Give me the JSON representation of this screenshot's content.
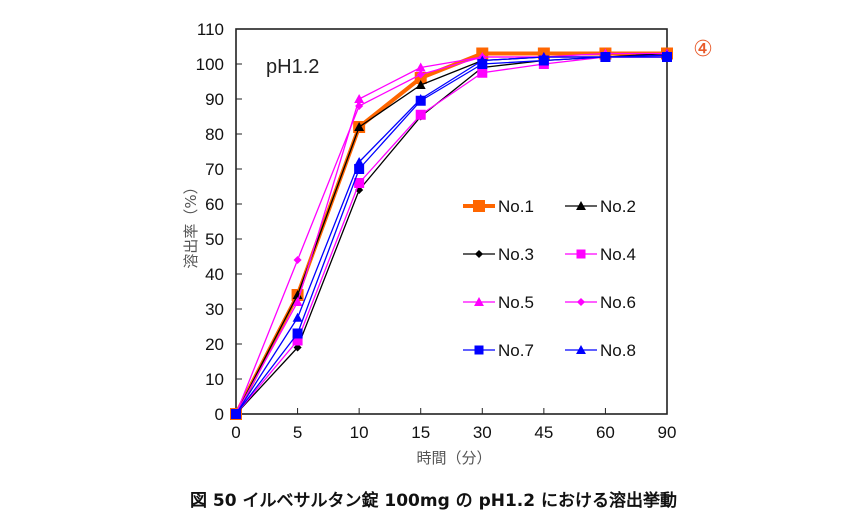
{
  "badge": "④",
  "caption": "図 50  イルベサルタン錠 100mg の pH1.2 における溶出挙動",
  "chart_data": {
    "type": "line",
    "title": "",
    "annotation": "pH1.2",
    "xlabel": "時間（分）",
    "ylabel": "溶出率（%）",
    "categories": [
      "0",
      "5",
      "10",
      "15",
      "30",
      "45",
      "60",
      "90"
    ],
    "ylim": [
      0,
      110
    ],
    "yticks": [
      0,
      10,
      20,
      30,
      40,
      50,
      60,
      70,
      80,
      90,
      100,
      110
    ],
    "grid": false,
    "legend_position": "center-right",
    "series": [
      {
        "name": "No.1",
        "color": "#ff6600",
        "marker": "square",
        "bold": true,
        "values": [
          0,
          34,
          82,
          96,
          103,
          103,
          103,
          103
        ]
      },
      {
        "name": "No.2",
        "color": "#000000",
        "marker": "triangle",
        "values": [
          0,
          34,
          82,
          94,
          101,
          102,
          102,
          103
        ]
      },
      {
        "name": "No.3",
        "color": "#000000",
        "marker": "diamond",
        "values": [
          0,
          19,
          64,
          85,
          99,
          101,
          102,
          102
        ]
      },
      {
        "name": "No.4",
        "color": "#ff00ff",
        "marker": "square",
        "values": [
          0,
          21,
          66,
          85.5,
          97.5,
          100,
          102,
          102
        ]
      },
      {
        "name": "No.5",
        "color": "#ff00ff",
        "marker": "triangle",
        "values": [
          0,
          32,
          90,
          99,
          102,
          102,
          103,
          103
        ]
      },
      {
        "name": "No.6",
        "color": "#ff00ff",
        "marker": "diamond",
        "values": [
          0,
          44,
          88,
          97,
          102,
          102,
          102,
          102
        ]
      },
      {
        "name": "No.7",
        "color": "#0000ff",
        "marker": "square",
        "values": [
          0,
          23,
          70,
          89.5,
          100,
          101,
          102,
          102
        ]
      },
      {
        "name": "No.8",
        "color": "#0000ff",
        "marker": "triangle",
        "values": [
          0,
          27.5,
          72,
          90,
          101,
          102,
          102,
          102.5
        ]
      }
    ]
  }
}
